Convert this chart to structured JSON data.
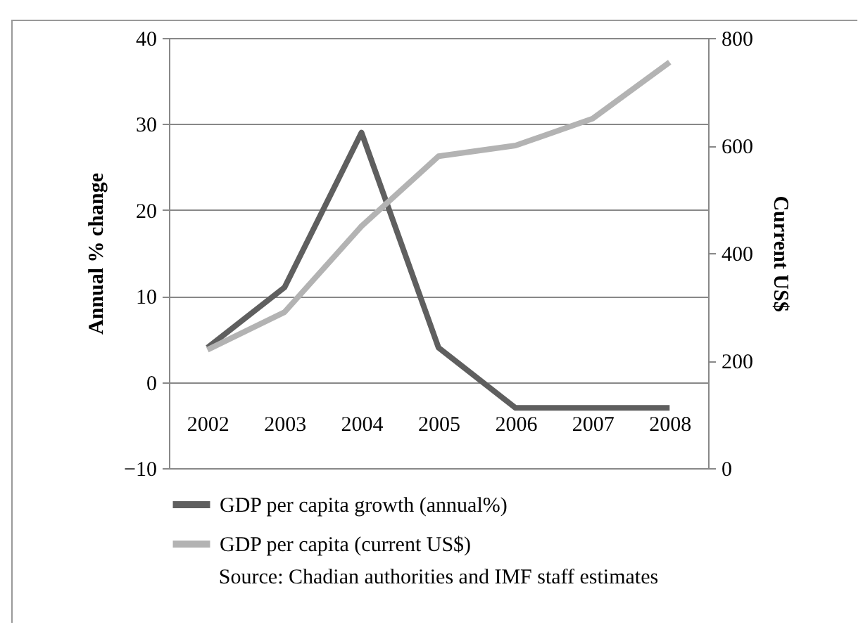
{
  "chart_data": {
    "type": "line",
    "categories": [
      "2002",
      "2003",
      "2004",
      "2005",
      "2006",
      "2007",
      "2008"
    ],
    "series": [
      {
        "name": "GDP per capita growth (annual%)",
        "color": "#5f5f5f",
        "values": [
          4,
          11,
          29,
          4,
          -3,
          -3,
          -3
        ]
      },
      {
        "name": "GDP per capita (current US$)",
        "color": "#b3b3b3",
        "axis": "y2",
        "values": [
          220,
          290,
          450,
          580,
          600,
          650,
          755
        ]
      }
    ],
    "ylabel": "Annual % change",
    "y2label": "Current US$",
    "ylim": [
      -10,
      40
    ],
    "yticks": [
      -10,
      0,
      10,
      20,
      30,
      40
    ],
    "y2lim": [
      0,
      800
    ],
    "y2ticks": [
      0,
      200,
      400,
      600,
      800
    ],
    "grid": "y",
    "legend": "bottom",
    "line_style": "solid",
    "marker": "none",
    "annotations": [
      "Source: Chadian authorities and IMF staff estimates"
    ]
  }
}
